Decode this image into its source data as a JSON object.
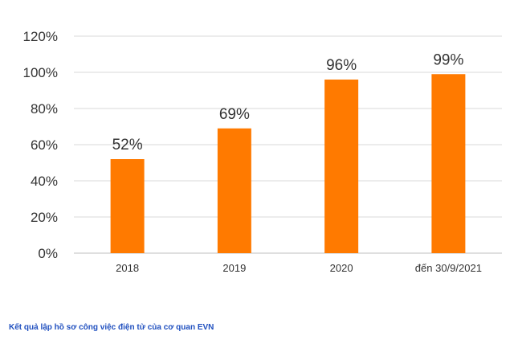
{
  "chart_data": {
    "type": "bar",
    "categories": [
      "2018",
      "2019",
      "2020",
      "đến 30/9/2021"
    ],
    "values": [
      52,
      69,
      96,
      99
    ],
    "data_labels": [
      "52%",
      "69%",
      "96%",
      "99%"
    ],
    "title": "",
    "xlabel": "",
    "ylabel": "",
    "ylim": [
      0,
      120
    ],
    "y_ticks": [
      0,
      20,
      40,
      60,
      80,
      100,
      120
    ],
    "y_tick_labels": [
      "0%",
      "20%",
      "40%",
      "60%",
      "80%",
      "100%",
      "120%"
    ],
    "grid": true,
    "legend": "none",
    "bar_color": "#ff7a00",
    "grid_color": "#d9d9d9"
  },
  "caption": "Kết quả lập hồ sơ công việc điện tử của cơ quan EVN"
}
